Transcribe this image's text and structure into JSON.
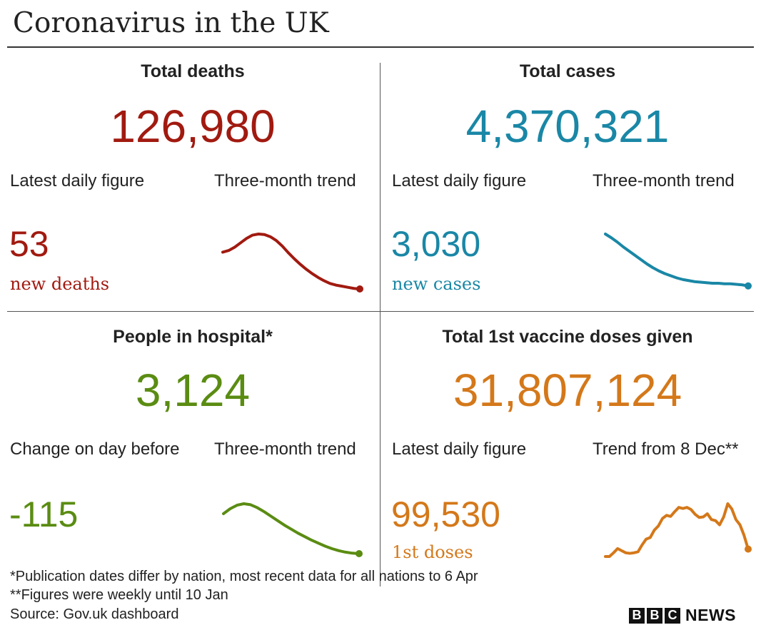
{
  "title": "Coronavirus in the UK",
  "colors": {
    "deaths": "#a11a10",
    "cases": "#1a87a6",
    "hospital": "#5a8c12",
    "vaccine": "#d4781a"
  },
  "panels": {
    "deaths": {
      "heading": "Total deaths",
      "total": "126,980",
      "left_label": "Latest daily figure",
      "right_label": "Three-month trend",
      "value": "53",
      "value_sub": "new deaths"
    },
    "cases": {
      "heading": "Total cases",
      "total": "4,370,321",
      "left_label": "Latest daily figure",
      "right_label": "Three-month trend",
      "value": "3,030",
      "value_sub": "new cases"
    },
    "hospital": {
      "heading": "People in hospital*",
      "total": "3,124",
      "left_label": "Change on day before",
      "right_label": "Three-month trend",
      "value": "-115",
      "value_sub": ""
    },
    "vaccine": {
      "heading": "Total 1st vaccine doses given",
      "total": "31,807,124",
      "left_label": "Latest daily figure",
      "right_label": "Trend from 8 Dec**",
      "value": "99,530",
      "value_sub": "1st doses"
    }
  },
  "footnotes": [
    "*Publication dates differ by nation, most recent data for all nations to 6 Apr",
    "**Figures were weekly until 10 Jan",
    "Source: Gov.uk dashboard"
  ],
  "logo": {
    "letters": [
      "B",
      "B",
      "C"
    ],
    "word": "NEWS"
  },
  "chart_data": [
    {
      "type": "line",
      "panel": "deaths",
      "series": [
        {
          "values": [
            67,
            70,
            76,
            84,
            92,
            98,
            100,
            99,
            95,
            88,
            78,
            66,
            55,
            45,
            36,
            28,
            21,
            15,
            10,
            7,
            5,
            3,
            1,
            0
          ]
        }
      ]
    },
    {
      "type": "line",
      "panel": "cases",
      "series": [
        {
          "values": [
            100,
            93,
            85,
            76,
            68,
            60,
            52,
            44,
            37,
            31,
            26,
            22,
            18,
            15,
            13,
            11,
            10,
            9,
            8,
            8,
            7,
            7,
            6,
            5,
            3
          ]
        }
      ]
    },
    {
      "type": "line",
      "panel": "hospital",
      "series": [
        {
          "values": [
            80,
            90,
            97,
            100,
            98,
            92,
            84,
            75,
            66,
            57,
            49,
            41,
            34,
            27,
            21,
            15,
            10,
            6,
            3,
            1,
            0
          ]
        }
      ]
    },
    {
      "type": "line",
      "panel": "vaccine",
      "series": [
        {
          "values": [
            0,
            0,
            7,
            15,
            11,
            7,
            6,
            7,
            9,
            22,
            33,
            36,
            50,
            58,
            72,
            78,
            76,
            85,
            93,
            91,
            93,
            89,
            80,
            74,
            75,
            81,
            70,
            68,
            60,
            75,
            100,
            90,
            70,
            60,
            40,
            14
          ]
        }
      ]
    }
  ]
}
